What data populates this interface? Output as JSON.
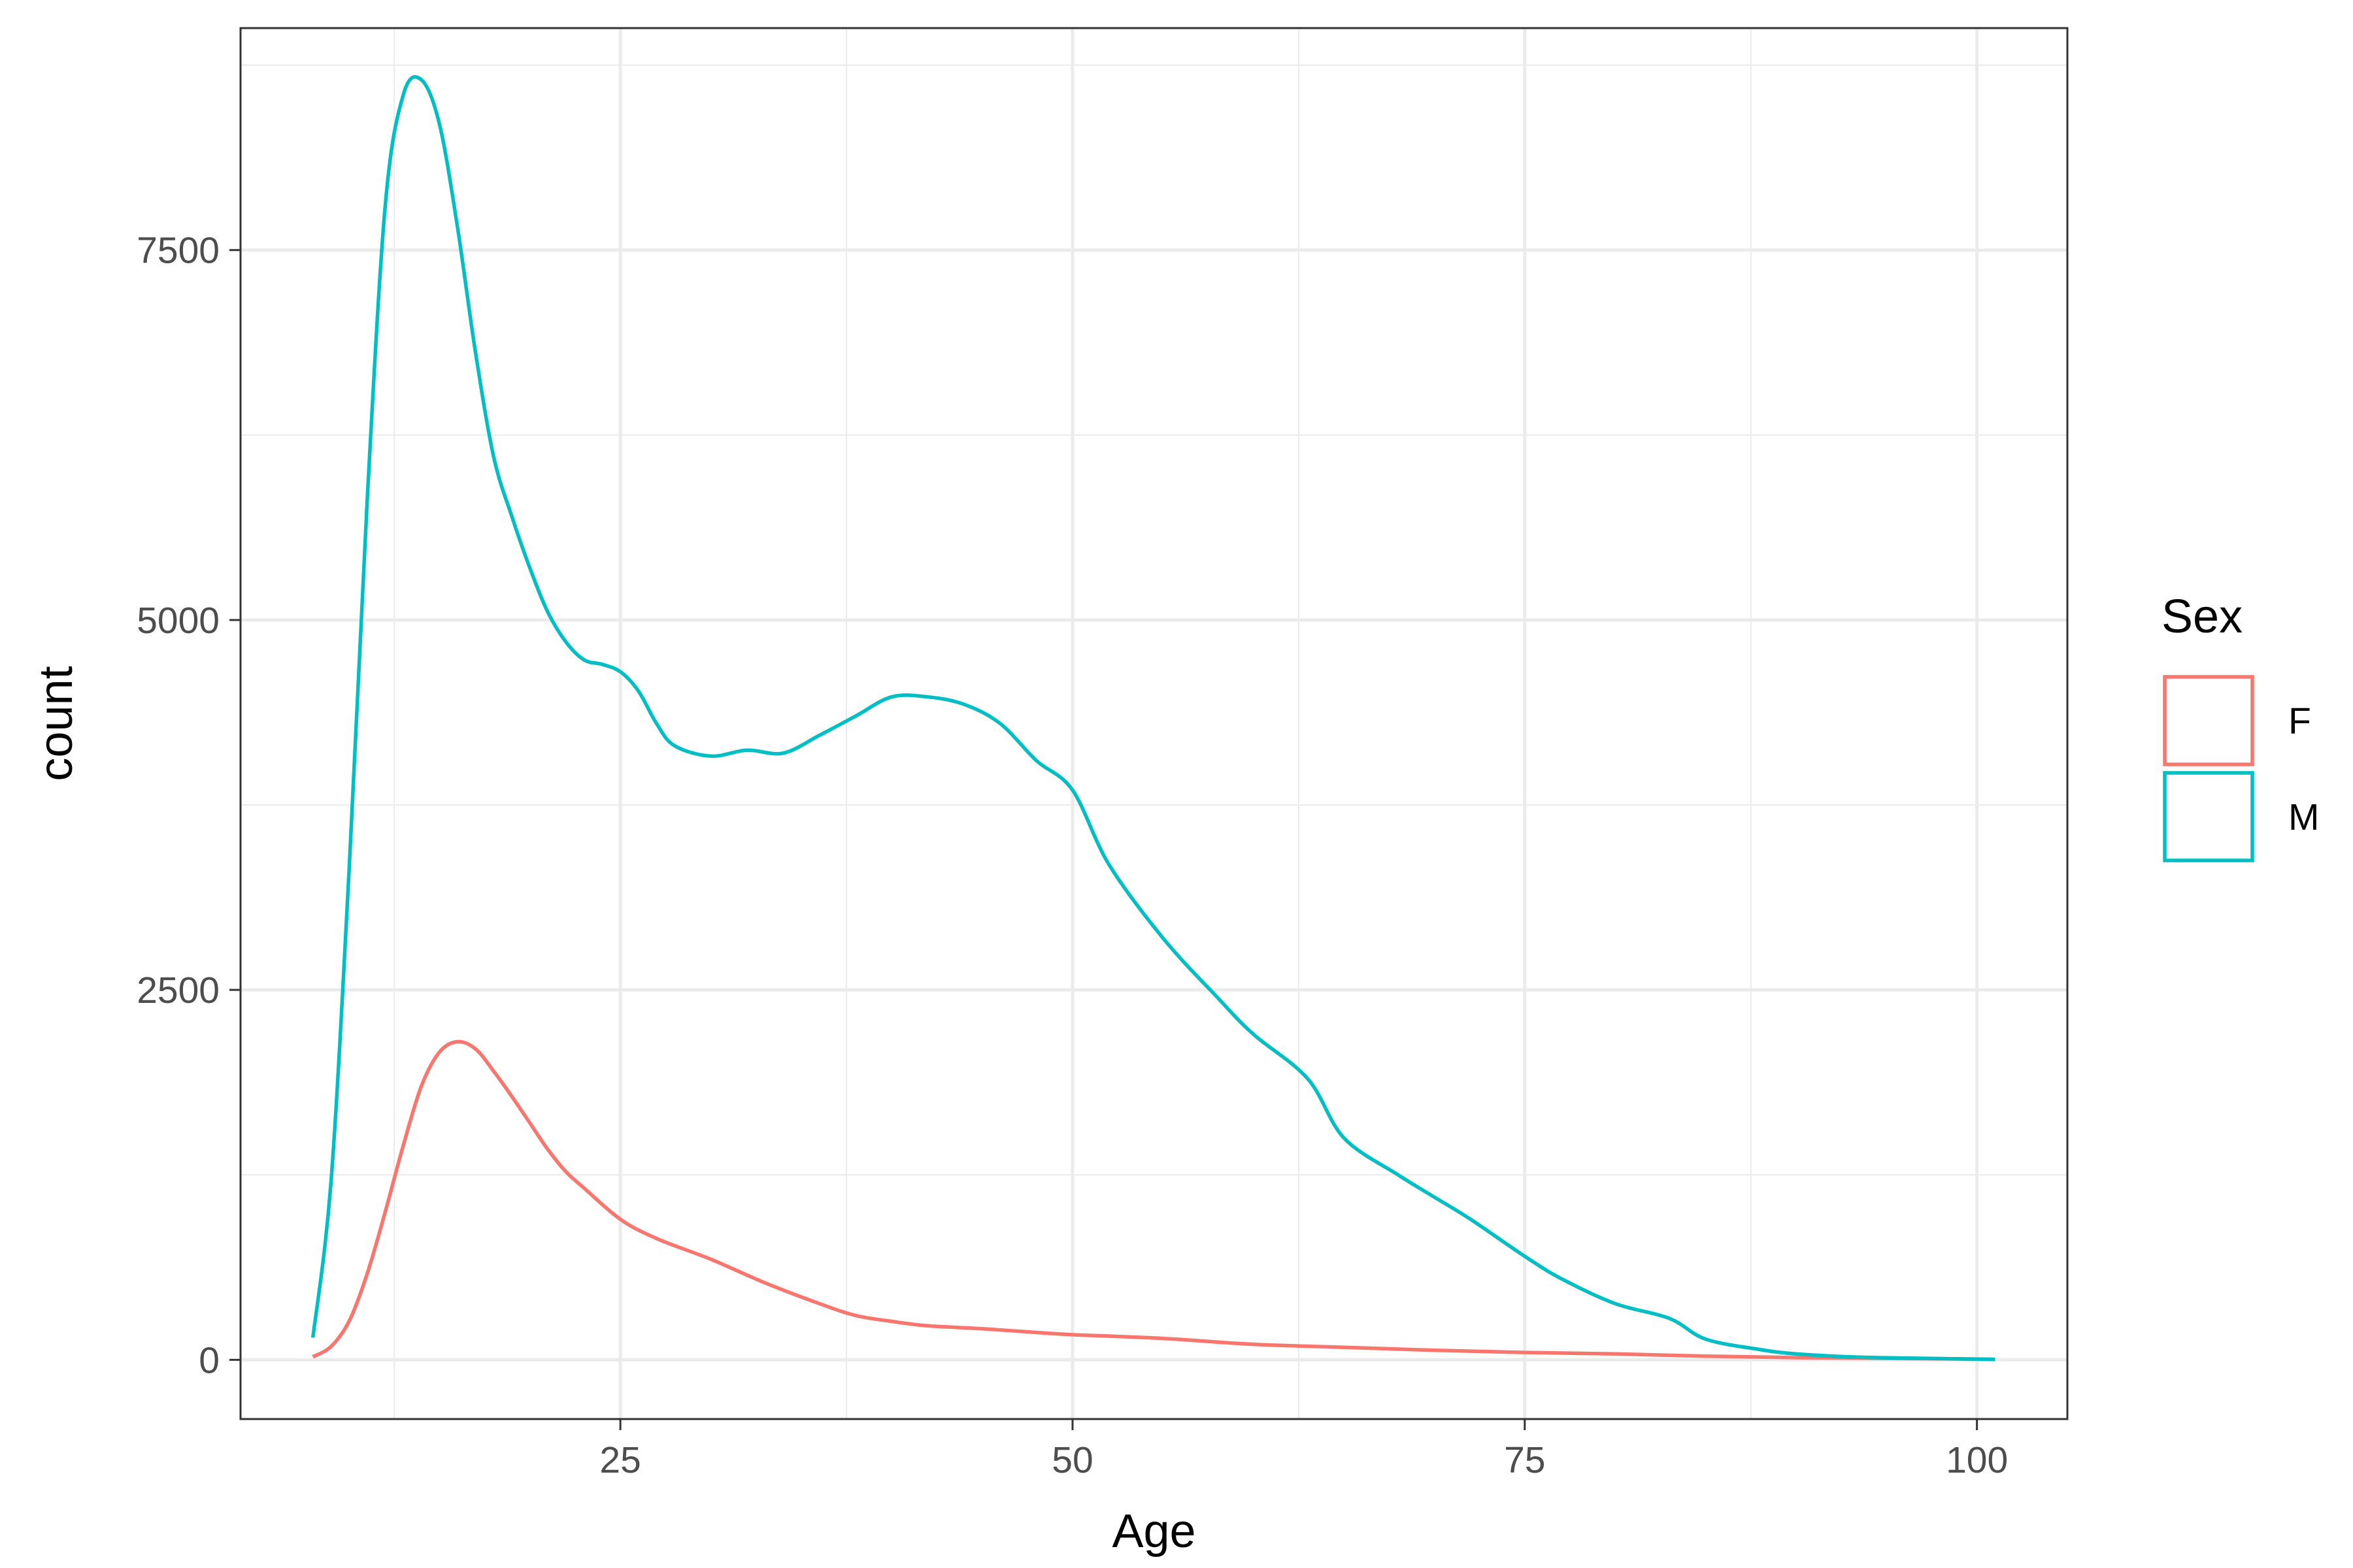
{
  "chart_data": {
    "type": "line",
    "title": "",
    "xlabel": "Age",
    "ylabel": "count",
    "xlim": [
      4,
      105
    ],
    "ylim": [
      -400,
      9000
    ],
    "x_ticks": [
      25,
      50,
      75,
      100
    ],
    "x_tick_labels": [
      "25",
      "50",
      "75",
      "100"
    ],
    "y_ticks": [
      0,
      2500,
      5000,
      7500
    ],
    "y_tick_labels": [
      "0",
      "2500",
      "5000",
      "7500"
    ],
    "grid": true,
    "legend": {
      "title": "Sex",
      "placement": "right",
      "entries": [
        "F",
        "M"
      ]
    },
    "series": [
      {
        "name": "F",
        "color": "#F8766D",
        "x": [
          8,
          9,
          10,
          11,
          12,
          13,
          14,
          15,
          16,
          17,
          18,
          19,
          20,
          21,
          22,
          23,
          25,
          27,
          30,
          33,
          36,
          38,
          40,
          42,
          45,
          48,
          50,
          55,
          60,
          65,
          70,
          75,
          80,
          85,
          90,
          95,
          100,
          101
        ],
        "y": [
          20,
          90,
          260,
          580,
          1000,
          1450,
          1850,
          2080,
          2150,
          2100,
          1950,
          1780,
          1600,
          1420,
          1270,
          1160,
          950,
          820,
          680,
          520,
          380,
          300,
          260,
          230,
          210,
          185,
          170,
          145,
          105,
          85,
          65,
          50,
          40,
          25,
          15,
          10,
          5,
          3
        ]
      },
      {
        "name": "M",
        "color": "#00BFC4",
        "x": [
          8,
          9,
          10,
          11,
          12,
          13,
          14,
          15,
          16,
          17,
          18,
          19,
          20,
          21,
          22,
          23,
          24,
          25,
          26,
          27,
          28,
          30,
          32,
          34,
          36,
          38,
          40,
          42,
          44,
          46,
          48,
          50,
          52,
          55,
          58,
          60,
          63,
          65,
          68,
          70,
          72,
          75,
          77,
          80,
          83,
          85,
          88,
          90,
          93,
          96,
          100,
          101
        ],
        "y": [
          150,
          1200,
          3300,
          5800,
          7800,
          8550,
          8650,
          8350,
          7650,
          6800,
          6100,
          5700,
          5350,
          5050,
          4850,
          4730,
          4700,
          4650,
          4520,
          4300,
          4150,
          4080,
          4120,
          4100,
          4220,
          4350,
          4480,
          4480,
          4430,
          4300,
          4050,
          3850,
          3350,
          2850,
          2450,
          2200,
          1900,
          1500,
          1250,
          1100,
          950,
          700,
          550,
          380,
          280,
          140,
          70,
          40,
          20,
          12,
          5,
          3
        ]
      }
    ]
  }
}
